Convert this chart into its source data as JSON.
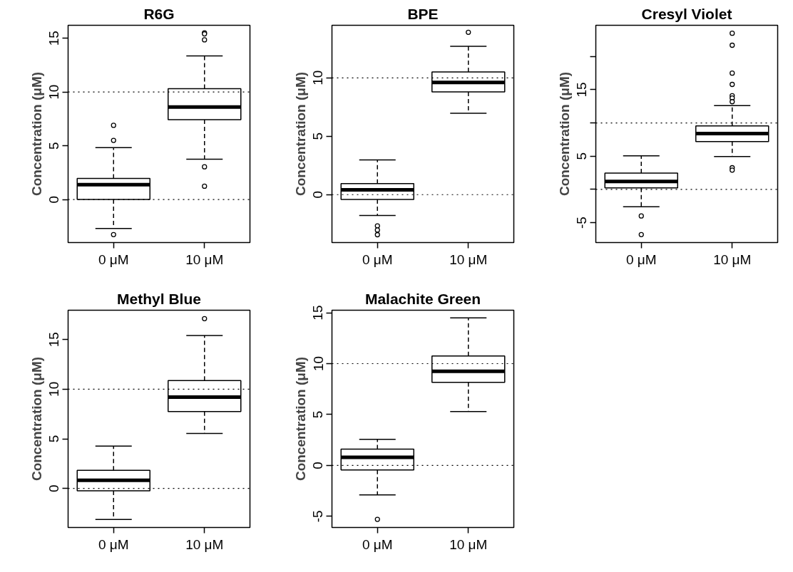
{
  "chart_data": [
    {
      "type": "box",
      "title": "R6G",
      "ylabel": "Concentration (μM)",
      "categories": [
        "0 μM",
        "10 μM"
      ],
      "ylim": [
        -4.0,
        16.2
      ],
      "yticks": [
        0,
        5,
        10,
        15
      ],
      "grid": false,
      "marker": "circle",
      "line_style": "dashed",
      "ref_lines": [
        {
          "axis": "y",
          "value": 0,
          "line_style": "dotted"
        },
        {
          "axis": "y",
          "value": 10,
          "line_style": "dotted"
        }
      ],
      "boxes": [
        {
          "low": -2.7,
          "q1": 0,
          "median": 1.38,
          "q3": 1.96,
          "high": 4.83,
          "outliers": [
            6.9,
            5.5,
            -3.26
          ]
        },
        {
          "low": 3.75,
          "q1": 7.43,
          "median": 8.6,
          "q3": 10.3,
          "high": 13.35,
          "outliers": [
            15.5,
            15.4,
            14.85,
            3.04,
            1.24
          ]
        }
      ]
    },
    {
      "type": "box",
      "title": "BPE",
      "ylabel": "Concentration (μM)",
      "categories": [
        "0 μM",
        "10 μM"
      ],
      "ylim": [
        -4.1,
        14.5
      ],
      "yticks": [
        0,
        5,
        10
      ],
      "grid": false,
      "marker": "circle",
      "line_style": "dashed",
      "ref_lines": [
        {
          "axis": "y",
          "value": 0,
          "line_style": "dotted"
        },
        {
          "axis": "y",
          "value": 10,
          "line_style": "dotted"
        }
      ],
      "boxes": [
        {
          "low": -1.78,
          "q1": -0.41,
          "median": 0.41,
          "q3": 0.94,
          "high": 2.98,
          "outliers": [
            -2.67,
            -3.03,
            -3.43
          ]
        },
        {
          "low": 6.97,
          "q1": 8.8,
          "median": 9.6,
          "q3": 10.5,
          "high": 12.7,
          "outliers": [
            13.9
          ]
        }
      ]
    },
    {
      "type": "box",
      "title": "Cresyl Violet",
      "ylabel": "Concentration (μM)",
      "categories": [
        "0 μM",
        "10 μM"
      ],
      "ylim": [
        -8.0,
        24.7
      ],
      "yticks": [
        -5,
        {
          "value": 0,
          "label": null
        },
        5,
        {
          "value": 10,
          "label": null
        },
        15,
        {
          "value": 20,
          "label": null
        }
      ],
      "grid": false,
      "marker": "circle",
      "line_style": "dashed",
      "ref_lines": [
        {
          "axis": "y",
          "value": 0,
          "line_style": "dotted"
        },
        {
          "axis": "y",
          "value": 10,
          "line_style": "dotted"
        }
      ],
      "boxes": [
        {
          "low": -2.6,
          "q1": 0.22,
          "median": 1.2,
          "q3": 2.46,
          "high": 5.05,
          "outliers": [
            -4.0,
            -6.8
          ]
        },
        {
          "low": 4.95,
          "q1": 7.2,
          "median": 8.4,
          "q3": 9.55,
          "high": 12.6,
          "outliers": [
            23.5,
            21.7,
            17.5,
            15.8,
            14.1,
            13.75,
            13.2,
            3.26,
            2.9
          ]
        }
      ]
    },
    {
      "type": "box",
      "title": "Methyl Blue",
      "ylabel": "Concentration (μM)",
      "categories": [
        "0 μM",
        "10 μM"
      ],
      "ylim": [
        -3.93,
        17.95
      ],
      "yticks": [
        0,
        5,
        10,
        15
      ],
      "grid": false,
      "marker": "circle",
      "line_style": "dashed",
      "ref_lines": [
        {
          "axis": "y",
          "value": 0,
          "line_style": "dotted"
        },
        {
          "axis": "y",
          "value": 10,
          "line_style": "dotted"
        }
      ],
      "boxes": [
        {
          "low": -3.13,
          "q1": -0.24,
          "median": 0.83,
          "q3": 1.82,
          "high": 4.26
        },
        {
          "low": 5.54,
          "q1": 7.74,
          "median": 9.2,
          "q3": 10.86,
          "high": 15.4,
          "outliers": [
            17.1
          ]
        }
      ]
    },
    {
      "type": "box",
      "title": "Malachite Green",
      "ylabel": "Concentration (μM)",
      "categories": [
        "0 μM",
        "10 μM"
      ],
      "ylim": [
        -6.1,
        15.25
      ],
      "yticks": [
        -5,
        0,
        5,
        10,
        15
      ],
      "grid": false,
      "marker": "circle",
      "line_style": "dashed",
      "ref_lines": [
        {
          "axis": "y",
          "value": 0,
          "line_style": "dotted"
        },
        {
          "axis": "y",
          "value": 10,
          "line_style": "dotted"
        }
      ],
      "boxes": [
        {
          "low": -2.9,
          "q1": -0.44,
          "median": 0.79,
          "q3": 1.6,
          "high": 2.57,
          "outliers": [
            -5.3
          ]
        },
        {
          "low": 5.3,
          "q1": 8.16,
          "median": 9.24,
          "q3": 10.76,
          "high": 14.5
        }
      ]
    }
  ]
}
